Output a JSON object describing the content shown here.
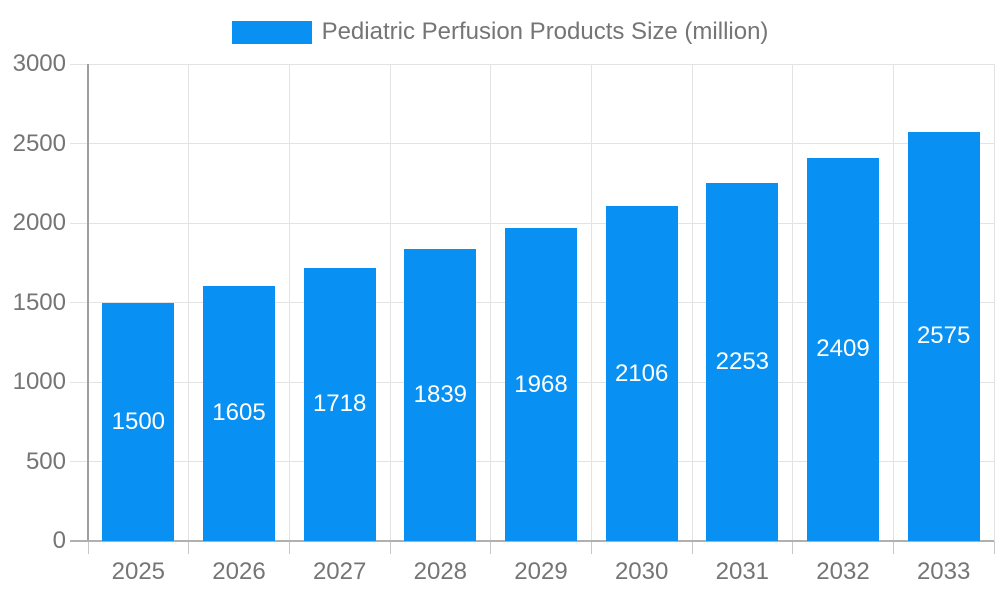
{
  "legend": {
    "label": "Pediatric Perfusion Products Size (million)"
  },
  "chart_data": {
    "type": "bar",
    "title": "Pediatric Perfusion Products Size (million)",
    "categories": [
      "2025",
      "2026",
      "2027",
      "2028",
      "2029",
      "2030",
      "2031",
      "2032",
      "2033"
    ],
    "values": [
      1500,
      1605,
      1718,
      1839,
      1968,
      2106,
      2253,
      2409,
      2575
    ],
    "series": [
      {
        "name": "Pediatric Perfusion Products Size (million)",
        "values": [
          1500,
          1605,
          1718,
          1839,
          1968,
          2106,
          2253,
          2409,
          2575
        ]
      }
    ],
    "xlabel": "",
    "ylabel": "",
    "ylim": [
      0,
      3000
    ],
    "yticks": [
      0,
      500,
      1000,
      1500,
      2000,
      2500,
      3000
    ],
    "grid": true,
    "legend_position": "top-center",
    "value_labels": "inside-middle-white"
  },
  "colors": {
    "bar": "#0890f2",
    "text": "#757575",
    "value_label": "#ffffff",
    "gridline": "#e3e3e3",
    "tick": "#c6c6c6",
    "y_axis": "#9e9e9e",
    "x_axis": "#b0b0b0",
    "background": "#ffffff"
  }
}
